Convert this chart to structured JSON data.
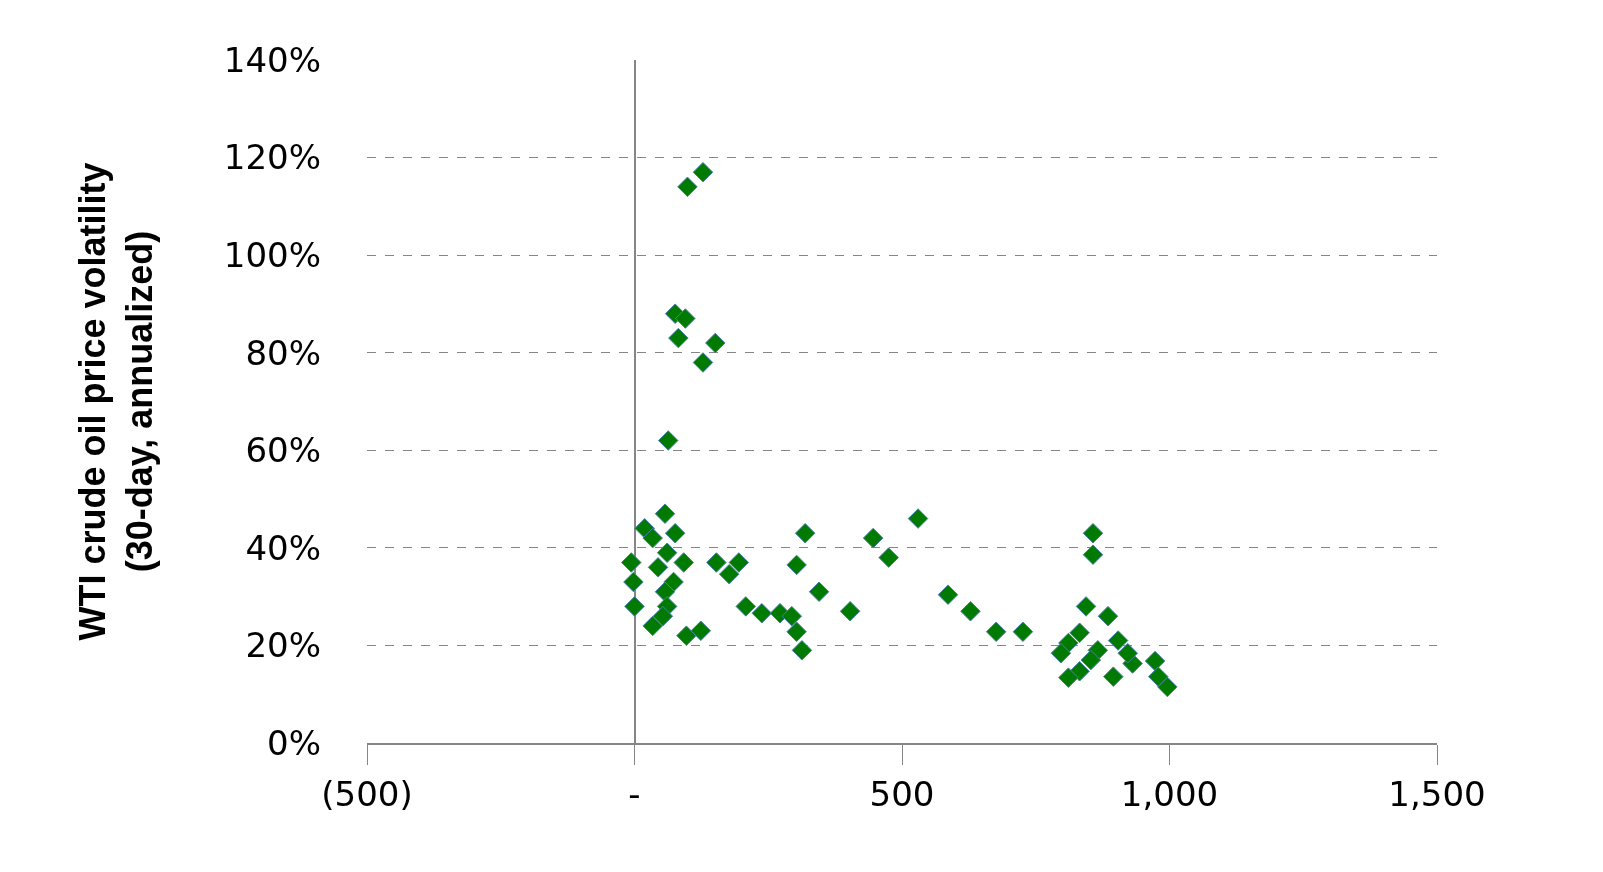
{
  "chart_data": {
    "type": "scatter",
    "ylabel": "WTI crude oil price volatility\n(30-day, annualized)",
    "x": [
      99,
      128,
      76,
      95,
      82,
      151,
      128,
      63,
      57,
      19,
      76,
      34,
      61,
      -6,
      92,
      44,
      -2,
      73,
      57,
      0,
      61,
      53,
      34,
      97,
      124,
      153,
      195,
      177,
      319,
      303,
      345,
      403,
      530,
      446,
      475,
      208,
      238,
      272,
      294,
      303,
      313,
      586,
      628,
      676,
      726,
      857,
      857,
      844,
      885,
      832,
      904,
      811,
      797,
      866,
      853,
      931,
      973,
      832,
      895,
      811,
      996,
      979,
      922
    ],
    "values": [
      114,
      117,
      88,
      87,
      83,
      82,
      78,
      62,
      47,
      44,
      43,
      42,
      39,
      37,
      37,
      36,
      33,
      33,
      31,
      28,
      28,
      26,
      24,
      22,
      23,
      37,
      37,
      34.6,
      43,
      36.5,
      31,
      27,
      46,
      42,
      38,
      28,
      26.6,
      26.6,
      26,
      22.8,
      19,
      30.4,
      27,
      22.8,
      22.8,
      43,
      38.6,
      28,
      26,
      22.6,
      21,
      20.5,
      18.4,
      19,
      17,
      16.3,
      16.8,
      14.7,
      13.6,
      13.4,
      11.5,
      13.6,
      18.4
    ],
    "color": "#007a00",
    "marker": "diamond",
    "xlim": [
      -500,
      1500
    ],
    "xticks": [
      {
        "value": -500,
        "label": "(500)"
      },
      {
        "value": 0,
        "label": "-"
      },
      {
        "value": 500,
        "label": "500"
      },
      {
        "value": 1000,
        "label": "1,000"
      },
      {
        "value": 1500,
        "label": "1,500"
      }
    ],
    "ylim": [
      0,
      140
    ],
    "yticks": [
      {
        "value": 0,
        "label": "0%"
      },
      {
        "value": 20,
        "label": "20%"
      },
      {
        "value": 40,
        "label": "40%"
      },
      {
        "value": 60,
        "label": "60%"
      },
      {
        "value": 80,
        "label": "80%"
      },
      {
        "value": 100,
        "label": "100%"
      },
      {
        "value": 120,
        "label": "120%"
      },
      {
        "value": 140,
        "label": "140%"
      }
    ],
    "grid": "y"
  }
}
